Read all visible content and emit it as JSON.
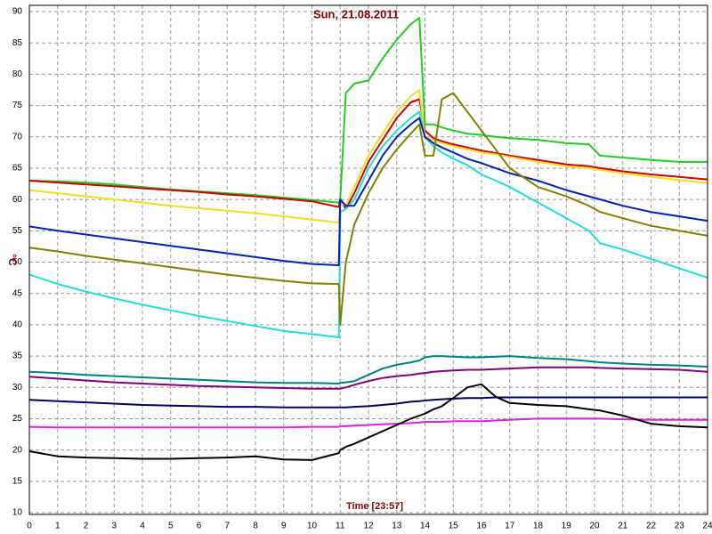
{
  "chart_data": {
    "type": "line",
    "title": "Sun, 21.08.2011",
    "x_label": "Time [23:57]",
    "y_label": "°C",
    "xlim": [
      0,
      24
    ],
    "ylim": [
      10,
      90
    ],
    "xticks": [
      0,
      1,
      2,
      3,
      4,
      5,
      6,
      7,
      8,
      9,
      10,
      11,
      12,
      13,
      14,
      15,
      16,
      17,
      18,
      19,
      20,
      21,
      22,
      23,
      24
    ],
    "yticks": [
      10,
      15,
      20,
      25,
      30,
      35,
      40,
      45,
      50,
      55,
      60,
      65,
      70,
      75,
      80,
      85,
      90
    ],
    "grid": true,
    "x": [
      0,
      1,
      2,
      3,
      4,
      5,
      6,
      7,
      8,
      9,
      10,
      10.95,
      11,
      11.2,
      11.5,
      12,
      12.5,
      13,
      13.5,
      13.8,
      14,
      14.3,
      14.6,
      15,
      15.5,
      16,
      16.5,
      17,
      18,
      19,
      19.8,
      20.2,
      21,
      22,
      23,
      24
    ],
    "series": [
      {
        "color": "#22cc22",
        "values": [
          63,
          62.9,
          62.7,
          62.4,
          62,
          61.6,
          61.3,
          61,
          60.7,
          60.3,
          59.9,
          59.5,
          60,
          77,
          78.5,
          79,
          82.5,
          85.5,
          88,
          89,
          72,
          72,
          71.5,
          71,
          70.5,
          70.3,
          70,
          69.8,
          69.5,
          69,
          68.8,
          67,
          66.7,
          66.3,
          66,
          66
        ]
      },
      {
        "color": "#cc0000",
        "values": [
          63,
          62.7,
          62.4,
          62.1,
          61.8,
          61.5,
          61.2,
          60.8,
          60.5,
          60.1,
          59.7,
          58.8,
          60,
          58.5,
          61,
          66,
          69.5,
          73,
          75.5,
          76,
          71,
          69.8,
          69.3,
          68.8,
          68.3,
          67.8,
          67.4,
          67,
          66.3,
          65.6,
          65.3,
          65,
          64.5,
          64,
          63.6,
          63.2
        ]
      },
      {
        "color": "#f0e020",
        "values": [
          61.5,
          61,
          60.5,
          60,
          59.5,
          59,
          58.6,
          58.2,
          57.8,
          57.3,
          56.8,
          56.3,
          59.5,
          59,
          62,
          67,
          70.5,
          74,
          76.5,
          77.5,
          70,
          69.5,
          69,
          68.5,
          68,
          67.5,
          67.2,
          66.8,
          66,
          65.3,
          65,
          64.7,
          64.2,
          63.6,
          63.1,
          62.6
        ]
      },
      {
        "color": "#22dddd",
        "values": [
          48,
          46.5,
          45.3,
          44.2,
          43.2,
          42.3,
          41.4,
          40.6,
          39.8,
          39,
          38.5,
          38,
          58,
          58.5,
          60,
          65,
          68.5,
          71,
          73,
          74,
          70,
          68.5,
          67.5,
          66.5,
          65.5,
          64,
          63,
          62,
          59.5,
          57,
          55,
          53,
          52,
          50.5,
          49,
          47.5
        ]
      },
      {
        "color": "#0022bb",
        "values": [
          55.7,
          55,
          54.4,
          53.8,
          53.2,
          52.6,
          52,
          51.4,
          50.8,
          50.2,
          49.7,
          49.5,
          60,
          59,
          59,
          63,
          67,
          70,
          72,
          73,
          70,
          69,
          68.3,
          67.5,
          66.5,
          65.8,
          65,
          64.2,
          63,
          61.5,
          60.5,
          60,
          59,
          58,
          57.3,
          56.6
        ]
      },
      {
        "color": "#808000",
        "values": [
          52.3,
          51.7,
          51,
          50.4,
          49.8,
          49.2,
          48.6,
          48,
          47.5,
          47,
          46.6,
          46.5,
          40,
          50,
          56,
          61,
          65,
          68,
          70.5,
          72,
          67,
          67,
          76,
          77,
          74,
          71,
          68,
          65,
          62,
          60.5,
          59,
          58,
          57,
          55.8,
          55,
          54.2
        ]
      },
      {
        "color": "#008080",
        "values": [
          32.5,
          32.3,
          32,
          31.8,
          31.6,
          31.4,
          31.2,
          31,
          30.8,
          30.7,
          30.7,
          30.6,
          30.7,
          30.8,
          31,
          32,
          33,
          33.6,
          34,
          34.3,
          34.8,
          35,
          35,
          34.9,
          34.8,
          34.8,
          34.9,
          35,
          34.7,
          34.5,
          34.2,
          34,
          33.8,
          33.6,
          33.5,
          33.3
        ]
      },
      {
        "color": "#800080",
        "values": [
          31.7,
          31.4,
          31.1,
          30.8,
          30.6,
          30.4,
          30.2,
          30.1,
          30,
          29.9,
          29.8,
          29.8,
          29.8,
          30,
          30.4,
          31,
          31.5,
          31.8,
          32,
          32.2,
          32.3,
          32.5,
          32.6,
          32.7,
          32.8,
          32.8,
          32.9,
          33,
          33.2,
          33.2,
          33.2,
          33.1,
          33,
          32.9,
          32.8,
          32.5
        ]
      },
      {
        "color": "#000066",
        "values": [
          28,
          27.8,
          27.6,
          27.4,
          27.2,
          27.1,
          27,
          26.9,
          26.9,
          26.8,
          26.8,
          26.8,
          26.8,
          26.8,
          26.9,
          27,
          27.2,
          27.4,
          27.7,
          27.8,
          27.9,
          28,
          28.1,
          28.2,
          28.3,
          28.3,
          28.4,
          28.4,
          28.4,
          28.4,
          28.4,
          28.4,
          28.4,
          28.4,
          28.4,
          28.4
        ]
      },
      {
        "color": "#dd22dd",
        "values": [
          23.7,
          23.6,
          23.6,
          23.6,
          23.6,
          23.6,
          23.6,
          23.6,
          23.6,
          23.6,
          23.7,
          23.7,
          23.8,
          23.8,
          23.9,
          24,
          24.1,
          24.2,
          24.3,
          24.4,
          24.5,
          24.5,
          24.5,
          24.6,
          24.6,
          24.6,
          24.7,
          24.8,
          25,
          25,
          25,
          25,
          24.9,
          24.8,
          24.8,
          24.8
        ]
      },
      {
        "color": "#000000",
        "values": [
          19.8,
          19,
          18.8,
          18.7,
          18.6,
          18.6,
          18.7,
          18.8,
          19,
          18.5,
          18.4,
          19.5,
          20,
          20.5,
          21,
          22,
          23,
          24,
          25,
          25.5,
          25.8,
          26.5,
          27,
          28.3,
          30,
          30.5,
          28.5,
          27.5,
          27.2,
          27,
          26.5,
          26.3,
          25.5,
          24.2,
          23.8,
          23.6
        ]
      }
    ]
  }
}
